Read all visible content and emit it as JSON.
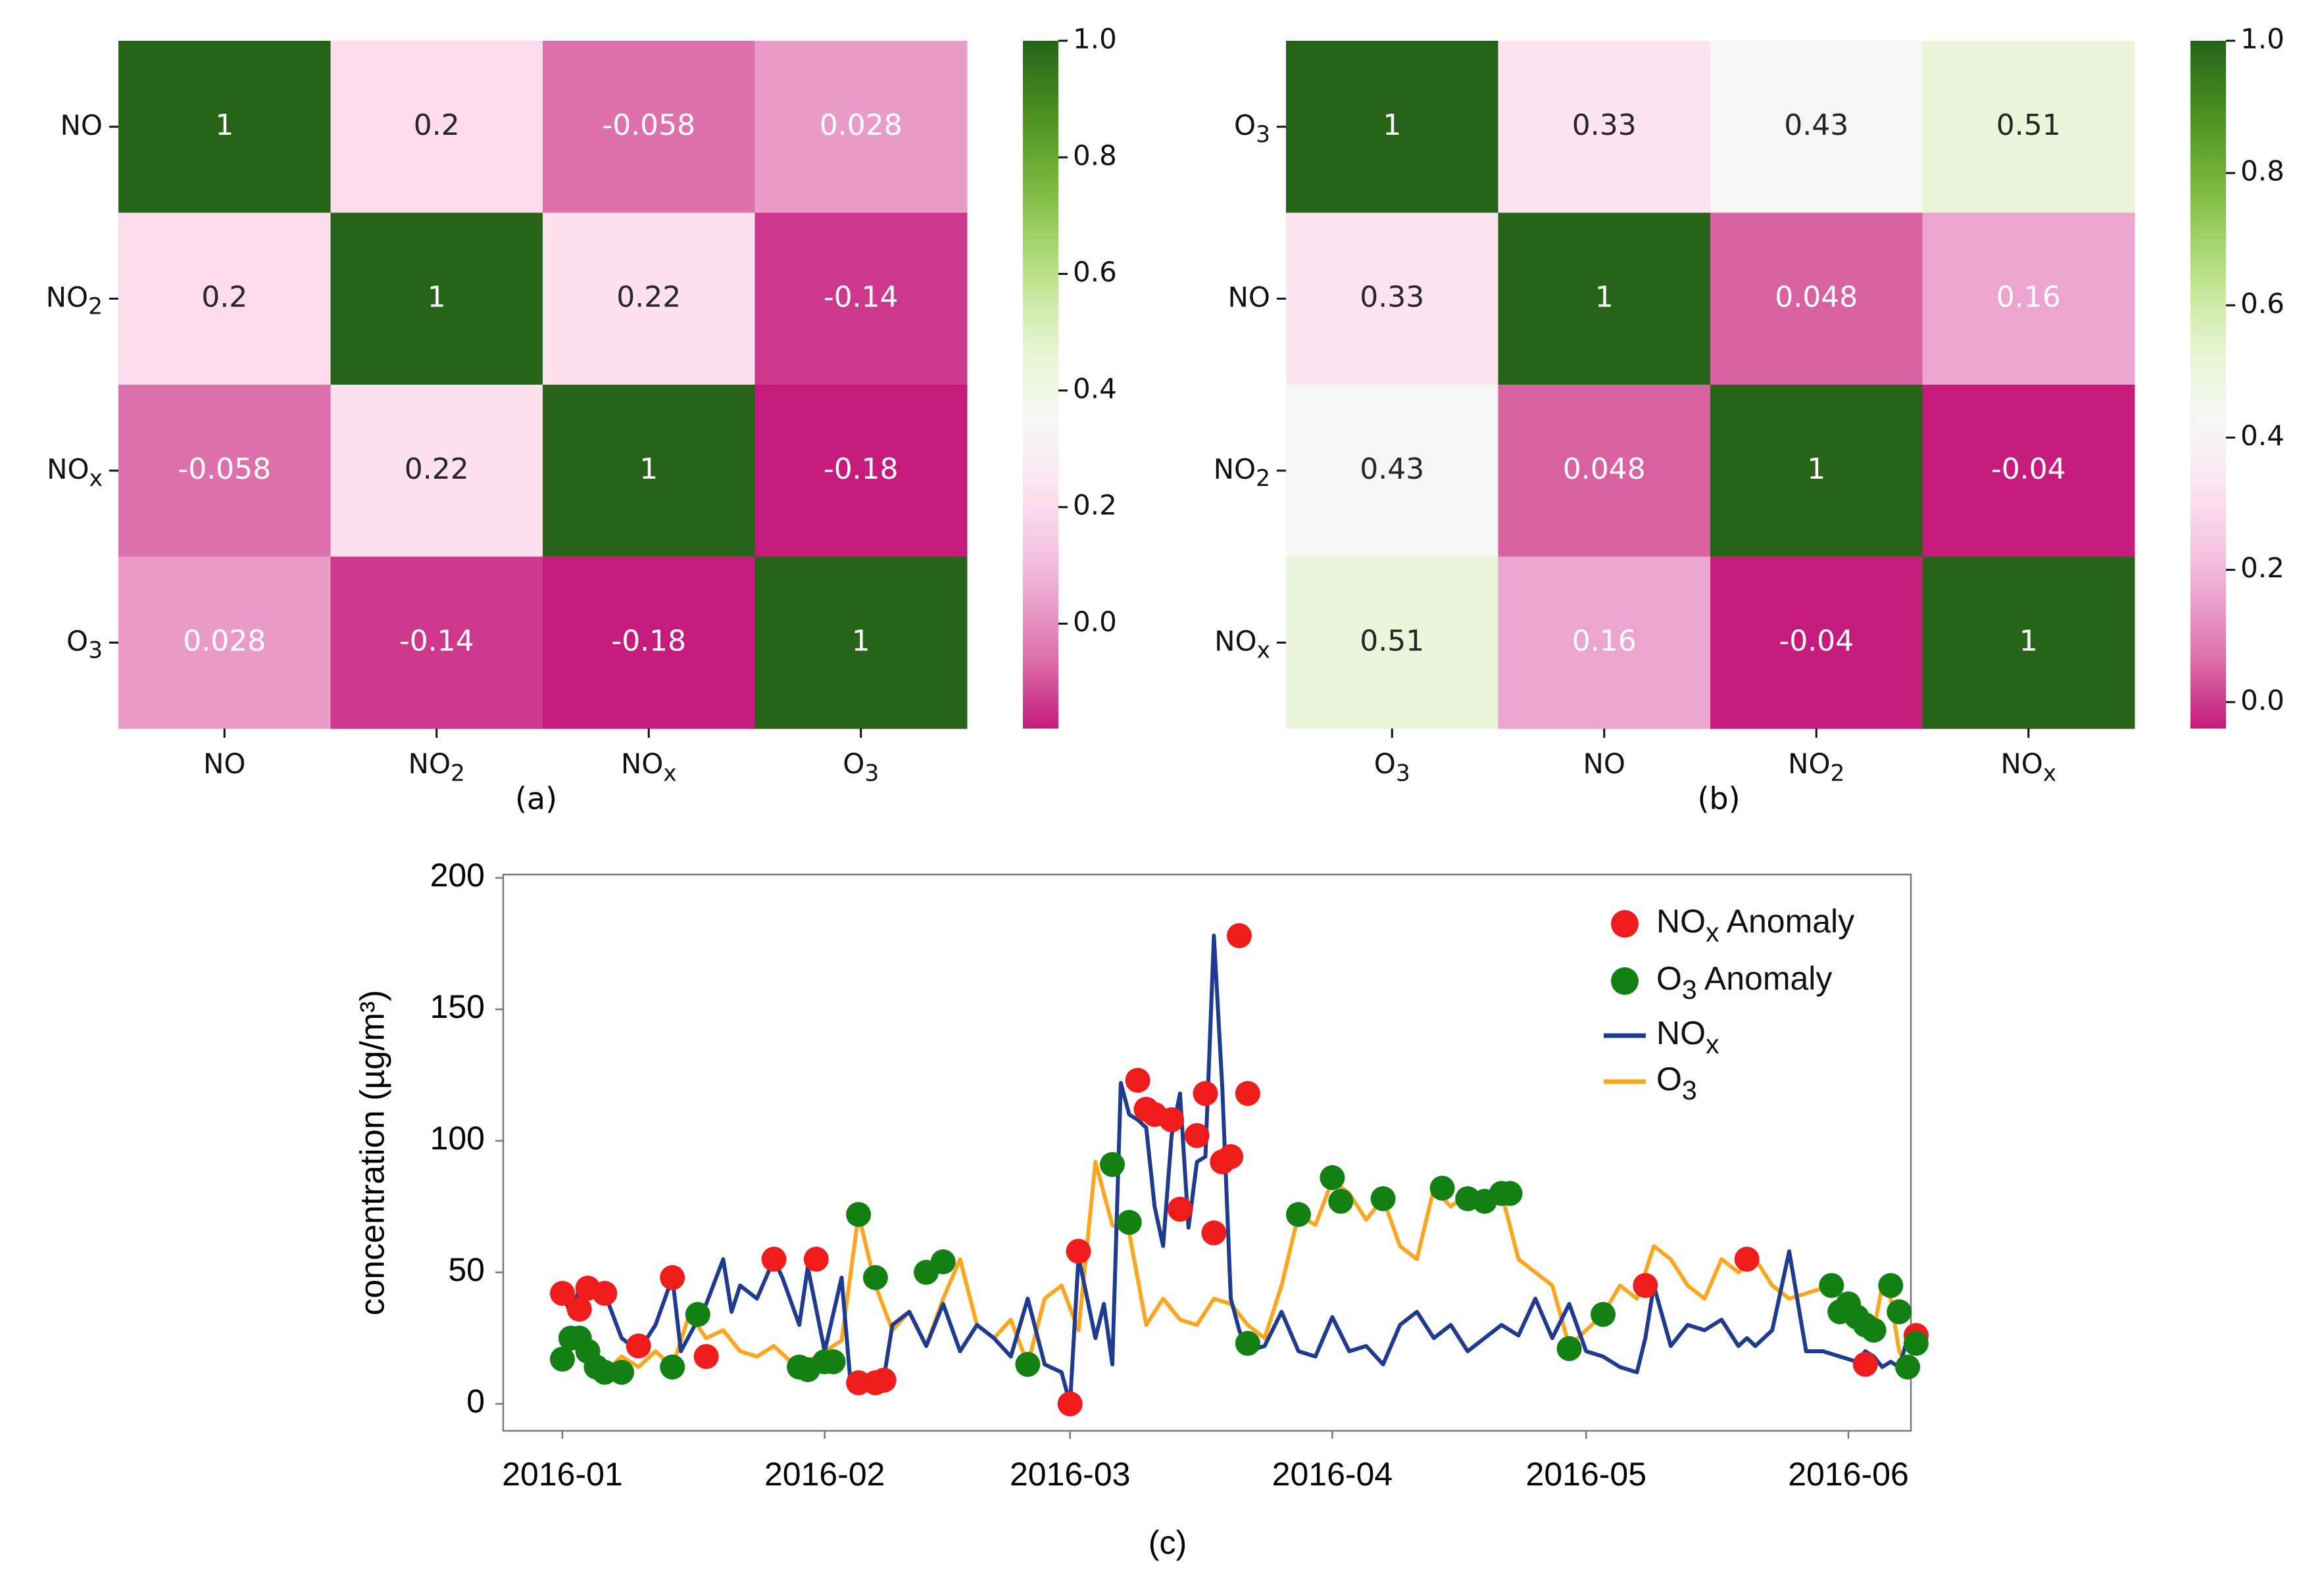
{
  "chart_data": [
    {
      "type": "heatmap",
      "caption": "(a)",
      "rows": [
        {
          "base": "NO",
          "sub": ""
        },
        {
          "base": "NO",
          "sub": "2"
        },
        {
          "base": "NO",
          "sub": "x"
        },
        {
          "base": "O",
          "sub": "3"
        }
      ],
      "cols": [
        {
          "base": "NO",
          "sub": ""
        },
        {
          "base": "NO",
          "sub": "2"
        },
        {
          "base": "NO",
          "sub": "x"
        },
        {
          "base": "O",
          "sub": "3"
        }
      ],
      "values": [
        [
          1,
          0.2,
          -0.058,
          0.028
        ],
        [
          0.2,
          1,
          0.22,
          -0.14
        ],
        [
          -0.058,
          0.22,
          1,
          -0.18
        ],
        [
          0.028,
          -0.14,
          -0.18,
          1
        ]
      ],
      "labels": [
        [
          "1",
          "0.2",
          "-0.058",
          "0.028"
        ],
        [
          "0.2",
          "1",
          "0.22",
          "-0.14"
        ],
        [
          "-0.058",
          "0.22",
          "1",
          "-0.18"
        ],
        [
          "0.028",
          "-0.14",
          "-0.18",
          "1"
        ]
      ],
      "colorbar": {
        "vmin": -0.18,
        "vmax": 1.0,
        "ticks": [
          1.0,
          0.8,
          0.6,
          0.4,
          0.2,
          0.0
        ],
        "tick_labels": [
          "1.0",
          "0.8",
          "0.6",
          "0.4",
          "0.2",
          "0.0"
        ]
      }
    },
    {
      "type": "heatmap",
      "caption": "(b)",
      "rows": [
        {
          "base": "O",
          "sub": "3"
        },
        {
          "base": "NO",
          "sub": ""
        },
        {
          "base": "NO",
          "sub": "2"
        },
        {
          "base": "NO",
          "sub": "x"
        }
      ],
      "cols": [
        {
          "base": "O",
          "sub": "3"
        },
        {
          "base": "NO",
          "sub": ""
        },
        {
          "base": "NO",
          "sub": "2"
        },
        {
          "base": "NO",
          "sub": "x"
        }
      ],
      "values": [
        [
          1,
          0.33,
          0.43,
          0.51
        ],
        [
          0.33,
          1,
          0.048,
          0.16
        ],
        [
          0.43,
          0.048,
          1,
          -0.04
        ],
        [
          0.51,
          0.16,
          -0.04,
          1
        ]
      ],
      "labels": [
        [
          "1",
          "0.33",
          "0.43",
          "0.51"
        ],
        [
          "0.33",
          "1",
          "0.048",
          "0.16"
        ],
        [
          "0.43",
          "0.048",
          "1",
          "-0.04"
        ],
        [
          "0.51",
          "0.16",
          "-0.04",
          "1"
        ]
      ],
      "colorbar": {
        "vmin": -0.04,
        "vmax": 1.0,
        "ticks": [
          1.0,
          0.8,
          0.6,
          0.4,
          0.2,
          0.0
        ],
        "tick_labels": [
          "1.0",
          "0.8",
          "0.6",
          "0.4",
          "0.2",
          "0.0"
        ]
      }
    },
    {
      "type": "line",
      "caption": "(c)",
      "ylabel": "concentration (µg/m³)",
      "ylim": [
        -10,
        200
      ],
      "yticks": [
        0,
        50,
        100,
        150,
        200
      ],
      "xticks": [
        "2016-01-01",
        "2016-02-01",
        "2016-03-01",
        "2016-04-01",
        "2016-05-01",
        "2016-06-01"
      ],
      "xtick_labels": [
        "2016-01",
        "2016-02",
        "2016-03",
        "2016-04",
        "2016-05",
        "2016-06"
      ],
      "xlim": [
        "2016-01-01",
        "2016-06-12"
      ],
      "legend": {
        "position": "top-right",
        "entries": [
          {
            "kind": "marker",
            "color": "#ef1c1c",
            "base": "NO",
            "sub": "x",
            "text": " Anomaly"
          },
          {
            "kind": "marker",
            "color": "#138013",
            "base": "O",
            "sub": "3",
            "text": " Anomaly"
          },
          {
            "kind": "line",
            "color": "#1f3b8f",
            "base": "NO",
            "sub": "x",
            "text": ""
          },
          {
            "kind": "line",
            "color": "#fba61e",
            "base": "O",
            "sub": "3",
            "text": ""
          }
        ]
      },
      "series": [
        {
          "name": "NOx",
          "color": "#1f3b8f",
          "x": [
            "2016-01-01",
            "2016-01-02",
            "2016-01-03",
            "2016-01-04",
            "2016-01-05",
            "2016-01-06",
            "2016-01-08",
            "2016-01-10",
            "2016-01-12",
            "2016-01-14",
            "2016-01-15",
            "2016-01-17",
            "2016-01-18",
            "2016-01-20",
            "2016-01-21",
            "2016-01-22",
            "2016-01-24",
            "2016-01-26",
            "2016-01-27",
            "2016-01-29",
            "2016-01-30",
            "2016-02-01",
            "2016-02-03",
            "2016-02-04",
            "2016-02-05",
            "2016-02-06",
            "2016-02-07",
            "2016-02-08",
            "2016-02-09",
            "2016-02-11",
            "2016-02-13",
            "2016-02-15",
            "2016-02-17",
            "2016-02-19",
            "2016-02-21",
            "2016-02-23",
            "2016-02-25",
            "2016-02-27",
            "2016-02-29",
            "2016-03-01",
            "2016-03-02",
            "2016-03-04",
            "2016-03-05",
            "2016-03-06",
            "2016-03-07",
            "2016-03-08",
            "2016-03-09",
            "2016-03-10",
            "2016-03-11",
            "2016-03-12",
            "2016-03-13",
            "2016-03-14",
            "2016-03-15",
            "2016-03-16",
            "2016-03-17",
            "2016-03-18",
            "2016-03-19",
            "2016-03-20",
            "2016-03-21",
            "2016-03-22",
            "2016-03-24",
            "2016-03-26",
            "2016-03-28",
            "2016-03-30",
            "2016-04-01",
            "2016-04-03",
            "2016-04-05",
            "2016-04-07",
            "2016-04-09",
            "2016-04-11",
            "2016-04-13",
            "2016-04-15",
            "2016-04-17",
            "2016-04-19",
            "2016-04-21",
            "2016-04-23",
            "2016-04-25",
            "2016-04-27",
            "2016-04-29",
            "2016-05-01",
            "2016-05-03",
            "2016-05-05",
            "2016-05-07",
            "2016-05-08",
            "2016-05-09",
            "2016-05-11",
            "2016-05-13",
            "2016-05-15",
            "2016-05-17",
            "2016-05-19",
            "2016-05-20",
            "2016-05-21",
            "2016-05-23",
            "2016-05-25",
            "2016-05-27",
            "2016-05-29",
            "2016-05-31",
            "2016-06-02",
            "2016-06-03",
            "2016-06-04",
            "2016-06-05",
            "2016-06-06",
            "2016-06-07",
            "2016-06-08",
            "2016-06-09"
          ],
          "values": [
            42,
            34,
            44,
            46,
            40,
            42,
            25,
            20,
            30,
            48,
            20,
            32,
            38,
            55,
            35,
            45,
            40,
            55,
            48,
            30,
            52,
            20,
            48,
            10,
            8,
            8,
            12,
            10,
            30,
            35,
            22,
            38,
            20,
            30,
            25,
            18,
            40,
            15,
            12,
            0,
            56,
            25,
            38,
            15,
            122,
            110,
            108,
            105,
            75,
            60,
            102,
            118,
            67,
            92,
            94,
            178,
            120,
            40,
            28,
            20,
            22,
            35,
            20,
            18,
            33,
            20,
            22,
            15,
            30,
            35,
            25,
            30,
            20,
            25,
            30,
            26,
            40,
            25,
            38,
            20,
            18,
            14,
            12,
            25,
            45,
            22,
            30,
            28,
            32,
            22,
            25,
            22,
            28,
            58,
            20,
            20,
            18,
            16,
            20,
            18,
            14,
            16,
            14,
            25,
            26
          ]
        },
        {
          "name": "O3",
          "color": "#fba61e",
          "x": [
            "2016-01-01",
            "2016-01-02",
            "2016-01-03",
            "2016-01-04",
            "2016-01-05",
            "2016-01-06",
            "2016-01-08",
            "2016-01-10",
            "2016-01-12",
            "2016-01-14",
            "2016-01-16",
            "2016-01-18",
            "2016-01-20",
            "2016-01-22",
            "2016-01-24",
            "2016-01-26",
            "2016-01-28",
            "2016-01-30",
            "2016-02-01",
            "2016-02-03",
            "2016-02-05",
            "2016-02-07",
            "2016-02-09",
            "2016-02-11",
            "2016-02-13",
            "2016-02-15",
            "2016-02-17",
            "2016-02-19",
            "2016-02-21",
            "2016-02-23",
            "2016-02-25",
            "2016-02-27",
            "2016-02-29",
            "2016-03-02",
            "2016-03-04",
            "2016-03-06",
            "2016-03-08",
            "2016-03-10",
            "2016-03-12",
            "2016-03-14",
            "2016-03-16",
            "2016-03-18",
            "2016-03-20",
            "2016-03-22",
            "2016-03-24",
            "2016-03-26",
            "2016-03-28",
            "2016-03-30",
            "2016-04-01",
            "2016-04-03",
            "2016-04-05",
            "2016-04-07",
            "2016-04-09",
            "2016-04-11",
            "2016-04-13",
            "2016-04-15",
            "2016-04-17",
            "2016-04-19",
            "2016-04-21",
            "2016-04-23",
            "2016-04-25",
            "2016-04-27",
            "2016-04-29",
            "2016-05-01",
            "2016-05-03",
            "2016-05-05",
            "2016-05-07",
            "2016-05-09",
            "2016-05-11",
            "2016-05-13",
            "2016-05-15",
            "2016-05-17",
            "2016-05-19",
            "2016-05-21",
            "2016-05-23",
            "2016-05-25",
            "2016-05-27",
            "2016-05-29",
            "2016-05-31",
            "2016-06-01",
            "2016-06-02",
            "2016-06-03",
            "2016-06-04",
            "2016-06-05",
            "2016-06-06",
            "2016-06-07",
            "2016-06-08",
            "2016-06-09"
          ],
          "values": [
            18,
            25,
            22,
            18,
            14,
            12,
            18,
            14,
            20,
            14,
            34,
            25,
            28,
            20,
            18,
            22,
            16,
            16,
            20,
            24,
            72,
            45,
            28,
            35,
            22,
            40,
            55,
            30,
            25,
            32,
            15,
            40,
            45,
            28,
            92,
            68,
            65,
            30,
            40,
            32,
            30,
            40,
            38,
            30,
            25,
            45,
            72,
            68,
            85,
            80,
            70,
            78,
            60,
            55,
            82,
            75,
            80,
            78,
            80,
            55,
            50,
            45,
            22,
            28,
            34,
            45,
            40,
            60,
            55,
            45,
            40,
            55,
            50,
            55,
            45,
            40,
            42,
            44,
            42,
            38,
            35,
            32,
            28,
            45,
            40,
            20,
            14,
            25
          ]
        }
      ],
      "anomalies": [
        {
          "name": "NOx Anomaly",
          "color": "#ef1c1c",
          "x": [
            "2016-01-01",
            "2016-01-03",
            "2016-01-04",
            "2016-01-06",
            "2016-01-10",
            "2016-01-14",
            "2016-01-18",
            "2016-01-26",
            "2016-01-31",
            "2016-02-05",
            "2016-02-07",
            "2016-02-08",
            "2016-03-01",
            "2016-03-02",
            "2016-03-09",
            "2016-03-10",
            "2016-03-11",
            "2016-03-13",
            "2016-03-14",
            "2016-03-16",
            "2016-03-17",
            "2016-03-18",
            "2016-03-19",
            "2016-03-20",
            "2016-03-21",
            "2016-03-22",
            "2016-05-08",
            "2016-05-20",
            "2016-06-03",
            "2016-06-09"
          ],
          "values": [
            42,
            36,
            44,
            42,
            22,
            48,
            18,
            55,
            55,
            8,
            8,
            9,
            0,
            58,
            123,
            112,
            110,
            108,
            74,
            102,
            118,
            65,
            92,
            94,
            178,
            118,
            45,
            55,
            15,
            26
          ]
        },
        {
          "name": "O3 Anomaly",
          "color": "#138013",
          "x": [
            "2016-01-01",
            "2016-01-02",
            "2016-01-03",
            "2016-01-04",
            "2016-01-05",
            "2016-01-06",
            "2016-01-08",
            "2016-01-14",
            "2016-01-17",
            "2016-01-29",
            "2016-01-30",
            "2016-02-01",
            "2016-02-02",
            "2016-02-05",
            "2016-02-07",
            "2016-02-13",
            "2016-02-15",
            "2016-02-25",
            "2016-03-06",
            "2016-03-08",
            "2016-03-22",
            "2016-03-28",
            "2016-04-01",
            "2016-04-02",
            "2016-04-07",
            "2016-04-14",
            "2016-04-17",
            "2016-04-19",
            "2016-04-21",
            "2016-04-22",
            "2016-04-29",
            "2016-05-03",
            "2016-05-30",
            "2016-05-31",
            "2016-06-01",
            "2016-06-02",
            "2016-06-03",
            "2016-06-04",
            "2016-06-06",
            "2016-06-07",
            "2016-06-08",
            "2016-06-09"
          ],
          "values": [
            17,
            25,
            25,
            20,
            14,
            12,
            12,
            14,
            34,
            14,
            13,
            16,
            16,
            72,
            48,
            50,
            54,
            15,
            91,
            69,
            23,
            72,
            86,
            77,
            78,
            82,
            78,
            77,
            80,
            80,
            21,
            34,
            45,
            35,
            38,
            33,
            30,
            28,
            45,
            35,
            14,
            23
          ]
        }
      ]
    }
  ]
}
